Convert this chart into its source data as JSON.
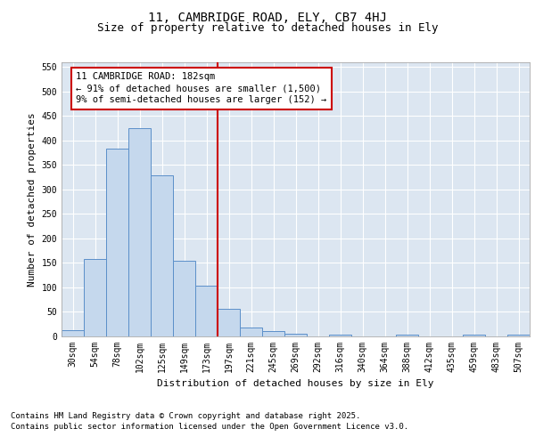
{
  "title_line1": "11, CAMBRIDGE ROAD, ELY, CB7 4HJ",
  "title_line2": "Size of property relative to detached houses in Ely",
  "xlabel": "Distribution of detached houses by size in Ely",
  "ylabel": "Number of detached properties",
  "bar_labels": [
    "30sqm",
    "54sqm",
    "78sqm",
    "102sqm",
    "125sqm",
    "149sqm",
    "173sqm",
    "197sqm",
    "221sqm",
    "245sqm",
    "269sqm",
    "292sqm",
    "316sqm",
    "340sqm",
    "364sqm",
    "388sqm",
    "412sqm",
    "435sqm",
    "459sqm",
    "483sqm",
    "507sqm"
  ],
  "bar_values": [
    12,
    157,
    383,
    425,
    328,
    153,
    103,
    55,
    17,
    10,
    5,
    0,
    3,
    0,
    0,
    2,
    0,
    0,
    2,
    0,
    3
  ],
  "bar_color": "#c5d8ed",
  "bar_edge_color": "#5b8fc9",
  "vline_x_index": 6.5,
  "vline_color": "#cc0000",
  "annotation_text": "11 CAMBRIDGE ROAD: 182sqm\n← 91% of detached houses are smaller (1,500)\n9% of semi-detached houses are larger (152) →",
  "annotation_box_color": "#cc0000",
  "ylim": [
    0,
    560
  ],
  "yticks": [
    0,
    50,
    100,
    150,
    200,
    250,
    300,
    350,
    400,
    450,
    500,
    550
  ],
  "background_color": "#dce6f1",
  "footer_line1": "Contains HM Land Registry data © Crown copyright and database right 2025.",
  "footer_line2": "Contains public sector information licensed under the Open Government Licence v3.0.",
  "title_fontsize": 10,
  "subtitle_fontsize": 9,
  "axis_label_fontsize": 8,
  "tick_fontsize": 7,
  "annotation_fontsize": 7.5,
  "footer_fontsize": 6.5
}
